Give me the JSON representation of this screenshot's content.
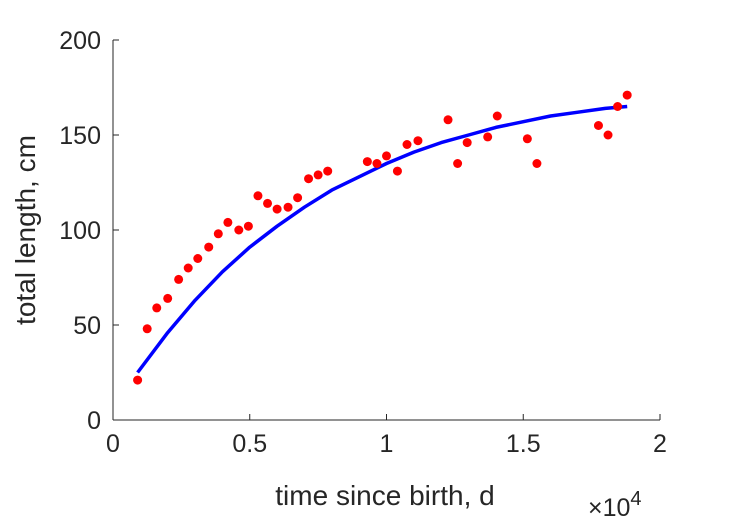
{
  "chart_data": {
    "type": "scatter",
    "title": "",
    "xlabel": "time since birth, d",
    "ylabel": "total length, cm",
    "x_multiplier_label": "×10",
    "x_multiplier_exponent": "4",
    "xlim": [
      0,
      2
    ],
    "ylim": [
      0,
      200
    ],
    "xticks": [
      0,
      0.5,
      1,
      1.5,
      2
    ],
    "xtick_labels": [
      "0",
      "0.5",
      "1",
      "1.5",
      "2"
    ],
    "yticks": [
      0,
      50,
      100,
      150,
      200
    ],
    "ytick_labels": [
      "0",
      "50",
      "100",
      "150",
      "200"
    ],
    "grid": false,
    "legend": "none",
    "colors": {
      "points": "#ff0000",
      "fit": "#0000ff",
      "axis": "#262626"
    },
    "series": [
      {
        "kind": "points",
        "x": [
          0.09,
          0.125,
          0.16,
          0.2,
          0.24,
          0.275,
          0.31,
          0.35,
          0.385,
          0.42,
          0.46,
          0.495,
          0.53,
          0.565,
          0.6,
          0.64,
          0.675,
          0.715,
          0.75,
          0.785,
          0.93,
          0.965,
          1.0,
          1.04,
          1.075,
          1.115,
          1.225,
          1.26,
          1.295,
          1.37,
          1.405,
          1.515,
          1.55,
          1.775,
          1.81,
          1.845,
          1.88
        ],
        "y": [
          21,
          48,
          59,
          64,
          74,
          80,
          85,
          91,
          98,
          104,
          100,
          102,
          118,
          114,
          111,
          112,
          117,
          127,
          129,
          131,
          136,
          135,
          139,
          131,
          145,
          147,
          158,
          135,
          146,
          149,
          160,
          148,
          135,
          155,
          150,
          165,
          171
        ]
      },
      {
        "kind": "fit",
        "x": [
          0.09,
          0.2,
          0.3,
          0.4,
          0.5,
          0.6,
          0.7,
          0.8,
          0.9,
          1.0,
          1.1,
          1.2,
          1.3,
          1.4,
          1.5,
          1.6,
          1.7,
          1.8,
          1.88
        ],
        "y": [
          25,
          46,
          63,
          78,
          91,
          102,
          112,
          121,
          128,
          135,
          141,
          146,
          150,
          154,
          157,
          160,
          162,
          164,
          165
        ]
      }
    ]
  }
}
